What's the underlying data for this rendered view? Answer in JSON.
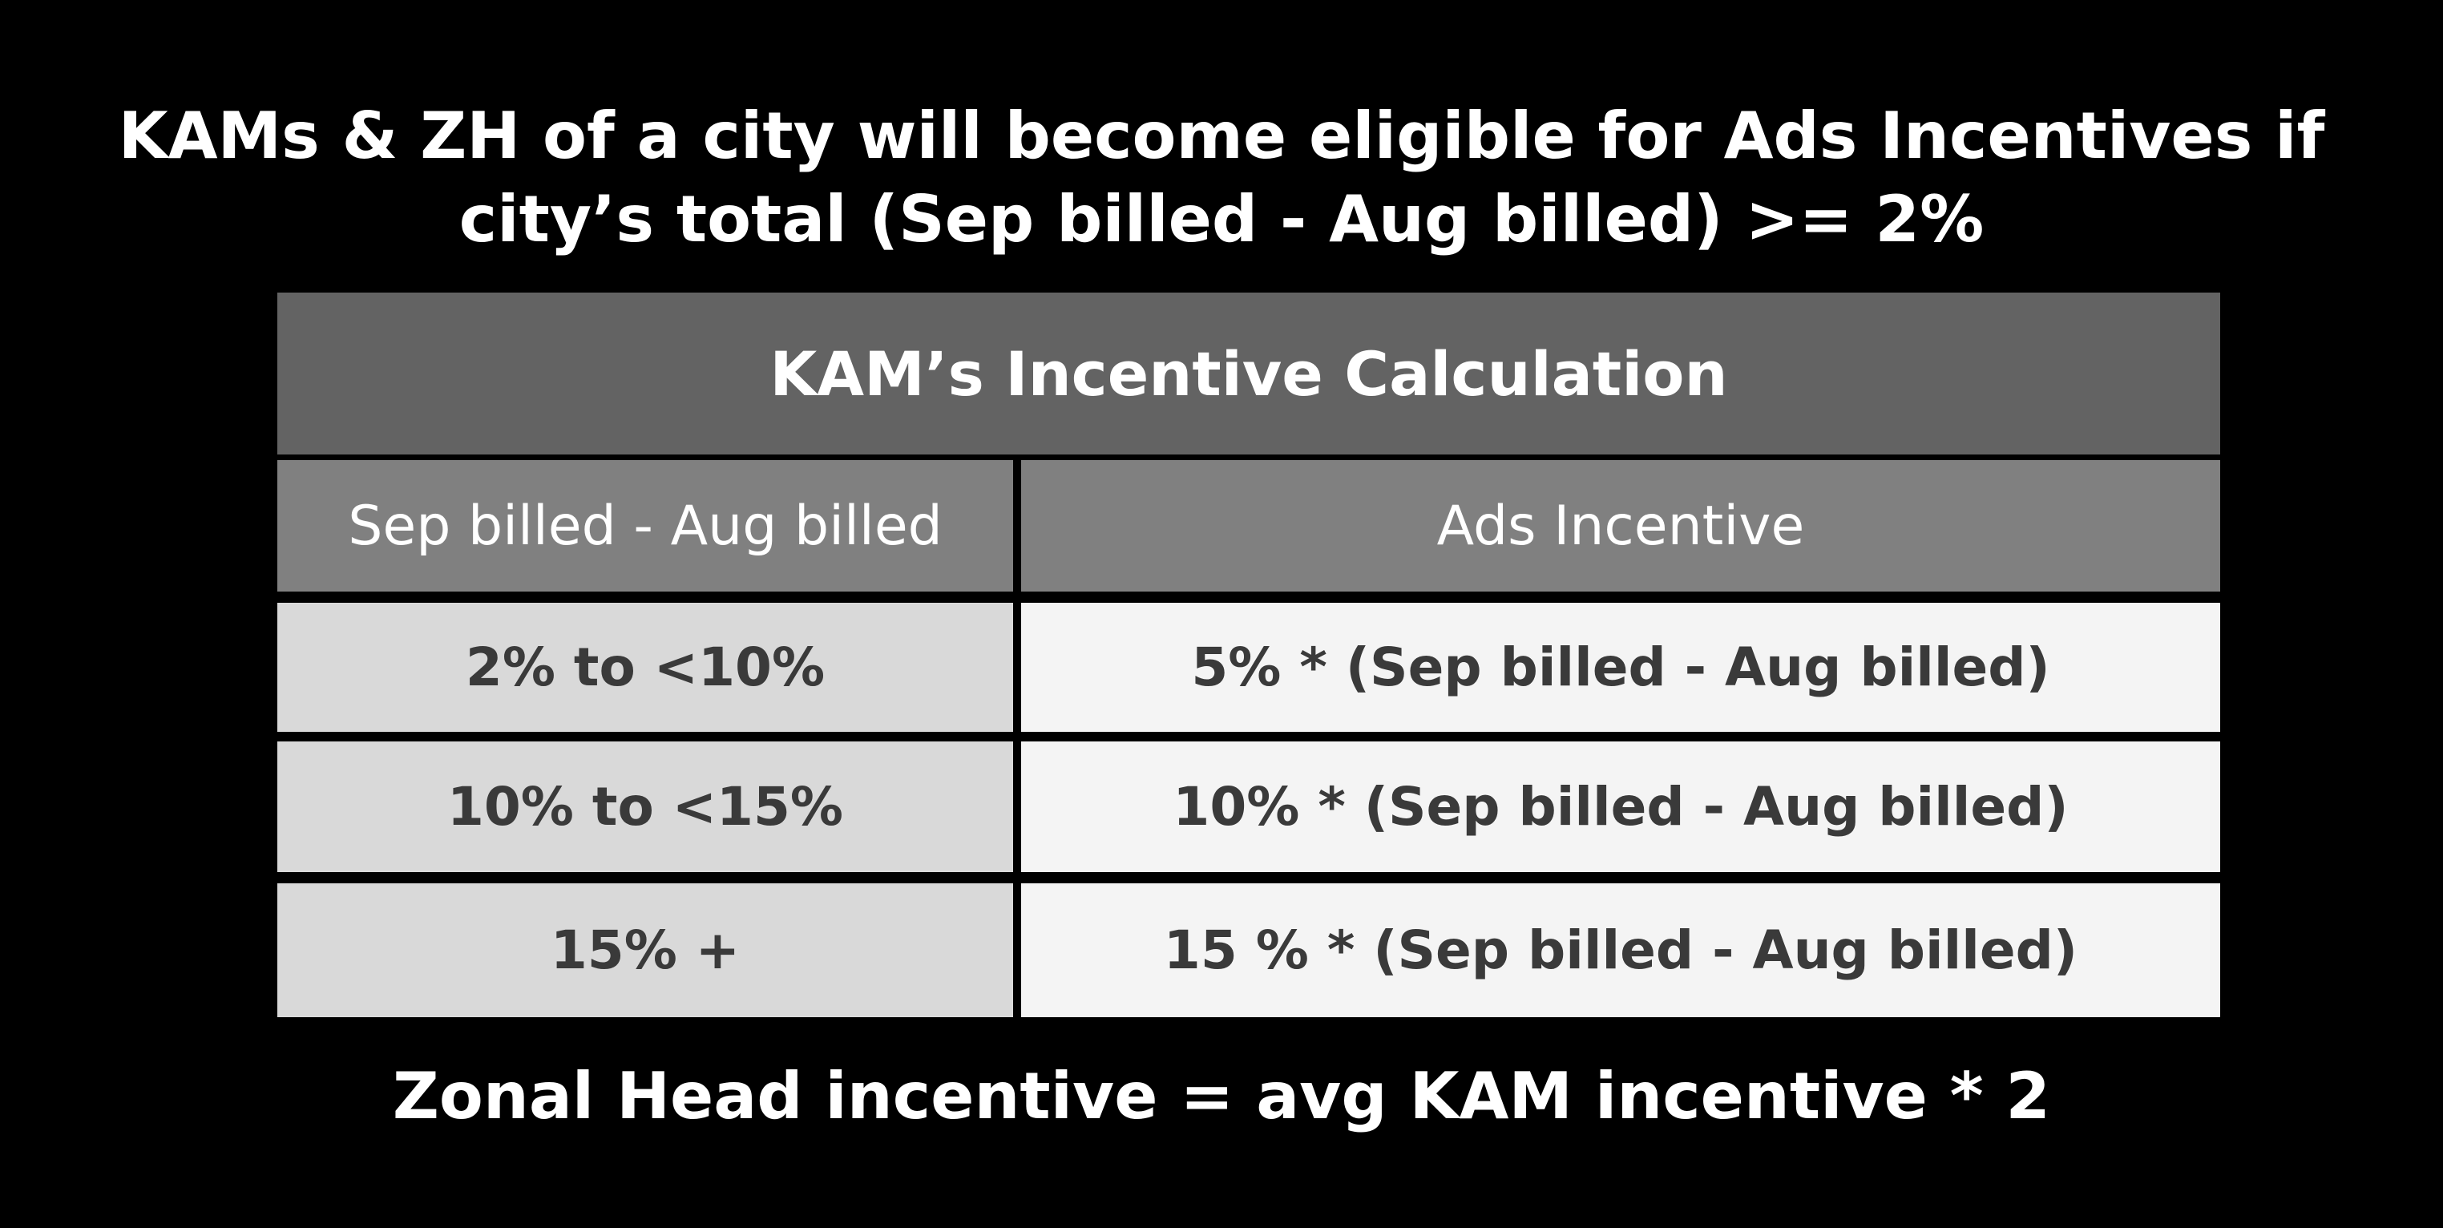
{
  "headline": {
    "line1": "KAMs & ZH of a city will become eligible for Ads Incentives if",
    "line2": "city’s total (Sep billed - Aug billed) >= 2%"
  },
  "table": {
    "title": "KAM’s Incentive Calculation",
    "columns": [
      "Sep billed - Aug billed",
      "Ads Incentive"
    ],
    "rows": [
      [
        "2% to <10%",
        "5% * (Sep billed - Aug billed)"
      ],
      [
        "10% to <15%",
        "10% * (Sep billed - Aug billed)"
      ],
      [
        "15% +",
        "15 % * (Sep billed - Aug billed)"
      ]
    ]
  },
  "footer": {
    "note": "Zonal Head incentive = avg KAM incentive * 2"
  },
  "colors": {
    "background": "#000000",
    "title_bar": "#636363",
    "header_row": "#808080",
    "range_cells": "#d9d9d9",
    "formula_cells": "#f4f4f4",
    "cell_text": "#3a3a3a"
  }
}
